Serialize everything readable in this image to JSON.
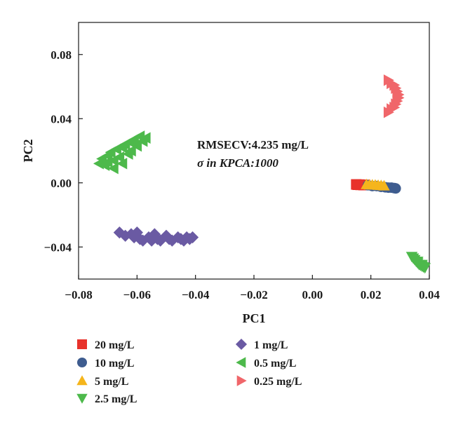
{
  "chart_data": {
    "type": "scatter",
    "title": "",
    "xlabel": "PC1",
    "ylabel": "PC2",
    "xlim": [
      -0.08,
      0.04
    ],
    "ylim": [
      -0.06,
      0.1
    ],
    "xticks": [
      -0.08,
      -0.06,
      -0.04,
      -0.02,
      0.0,
      0.02,
      0.04
    ],
    "xtick_labels": [
      "−0.08",
      "−0.06",
      "−0.04",
      "−0.02",
      "0.00",
      "0.02",
      "0.04"
    ],
    "yticks": [
      -0.04,
      0.0,
      0.04,
      0.08
    ],
    "ytick_labels": [
      "−0.04",
      "0.00",
      "0.04",
      "0.08"
    ],
    "grid": false,
    "legend_position": "below",
    "annotations": [
      "RMSECV:4.235 mg/L",
      "σ in KPCA:1000"
    ],
    "series": [
      {
        "name": "20 mg/L",
        "marker": "square",
        "color": "#e8322b",
        "points": [
          [
            0.015,
            -0.001
          ],
          [
            0.0155,
            -0.0012
          ],
          [
            0.016,
            -0.0011
          ],
          [
            0.0165,
            -0.0013
          ],
          [
            0.017,
            -0.0012
          ],
          [
            0.0175,
            -0.0014
          ],
          [
            0.018,
            -0.0013
          ]
        ]
      },
      {
        "name": "10 mg/L",
        "marker": "circle",
        "color": "#3e5c8f",
        "points": [
          [
            0.019,
            -0.0015
          ],
          [
            0.0205,
            -0.002
          ],
          [
            0.022,
            -0.002
          ],
          [
            0.0235,
            -0.0025
          ],
          [
            0.025,
            -0.0028
          ],
          [
            0.026,
            -0.003
          ],
          [
            0.027,
            -0.003
          ],
          [
            0.028,
            -0.0033
          ],
          [
            0.0285,
            -0.0035
          ]
        ]
      },
      {
        "name": "5 mg/L",
        "marker": "triangle-up",
        "color": "#f5b51c",
        "points": [
          [
            0.0185,
            -0.001
          ],
          [
            0.0195,
            -0.0012
          ],
          [
            0.0205,
            -0.0012
          ],
          [
            0.0215,
            -0.0013
          ],
          [
            0.0225,
            -0.0015
          ],
          [
            0.0235,
            -0.0016
          ],
          [
            0.0245,
            -0.0018
          ]
        ]
      },
      {
        "name": "2.5 mg/L",
        "marker": "triangle-down",
        "color": "#4db94b",
        "points": [
          [
            0.034,
            -0.046
          ],
          [
            0.0345,
            -0.047
          ],
          [
            0.035,
            -0.048
          ],
          [
            0.0355,
            -0.049
          ],
          [
            0.036,
            -0.05
          ],
          [
            0.0365,
            -0.051
          ],
          [
            0.037,
            -0.0515
          ],
          [
            0.0375,
            -0.052
          ],
          [
            0.038,
            -0.0525
          ],
          [
            0.0385,
            -0.053
          ],
          [
            0.0375,
            -0.051
          ],
          [
            0.036,
            -0.049
          ]
        ]
      },
      {
        "name": "1 mg/L",
        "marker": "diamond",
        "color": "#6a5aa3",
        "points": [
          [
            -0.066,
            -0.031
          ],
          [
            -0.064,
            -0.033
          ],
          [
            -0.062,
            -0.032
          ],
          [
            -0.061,
            -0.034
          ],
          [
            -0.06,
            -0.031
          ],
          [
            -0.059,
            -0.035
          ],
          [
            -0.058,
            -0.036
          ],
          [
            -0.056,
            -0.034
          ],
          [
            -0.055,
            -0.036
          ],
          [
            -0.054,
            -0.032
          ],
          [
            -0.053,
            -0.035
          ],
          [
            -0.052,
            -0.036
          ],
          [
            -0.05,
            -0.033
          ],
          [
            -0.049,
            -0.035
          ],
          [
            -0.048,
            -0.036
          ],
          [
            -0.046,
            -0.034
          ],
          [
            -0.045,
            -0.035
          ],
          [
            -0.044,
            -0.036
          ],
          [
            -0.043,
            -0.034
          ],
          [
            -0.042,
            -0.035
          ],
          [
            -0.041,
            -0.034
          ]
        ]
      },
      {
        "name": "0.5 mg/L",
        "marker": "triangle-left",
        "color": "#4db94b",
        "points": [
          [
            -0.073,
            0.012
          ],
          [
            -0.072,
            0.015
          ],
          [
            -0.071,
            0.011
          ],
          [
            -0.07,
            0.017
          ],
          [
            -0.07,
            0.013
          ],
          [
            -0.069,
            0.019
          ],
          [
            -0.068,
            0.014
          ],
          [
            -0.068,
            0.009
          ],
          [
            -0.067,
            0.021
          ],
          [
            -0.066,
            0.016
          ],
          [
            -0.065,
            0.022
          ],
          [
            -0.065,
            0.012
          ],
          [
            -0.064,
            0.024
          ],
          [
            -0.063,
            0.018
          ],
          [
            -0.062,
            0.025
          ],
          [
            -0.062,
            0.02
          ],
          [
            -0.061,
            0.027
          ],
          [
            -0.06,
            0.023
          ],
          [
            -0.059,
            0.029
          ],
          [
            -0.058,
            0.026
          ],
          [
            -0.057,
            0.028
          ]
        ]
      },
      {
        "name": "0.25 mg/L",
        "marker": "triangle-right",
        "color": "#f0666a",
        "points": [
          [
            0.026,
            0.064
          ],
          [
            0.027,
            0.062
          ],
          [
            0.028,
            0.061
          ],
          [
            0.0285,
            0.059
          ],
          [
            0.029,
            0.057
          ],
          [
            0.0295,
            0.055
          ],
          [
            0.0295,
            0.053
          ],
          [
            0.029,
            0.051
          ],
          [
            0.0285,
            0.049
          ],
          [
            0.028,
            0.047
          ],
          [
            0.027,
            0.046
          ],
          [
            0.026,
            0.044
          ]
        ]
      }
    ]
  }
}
